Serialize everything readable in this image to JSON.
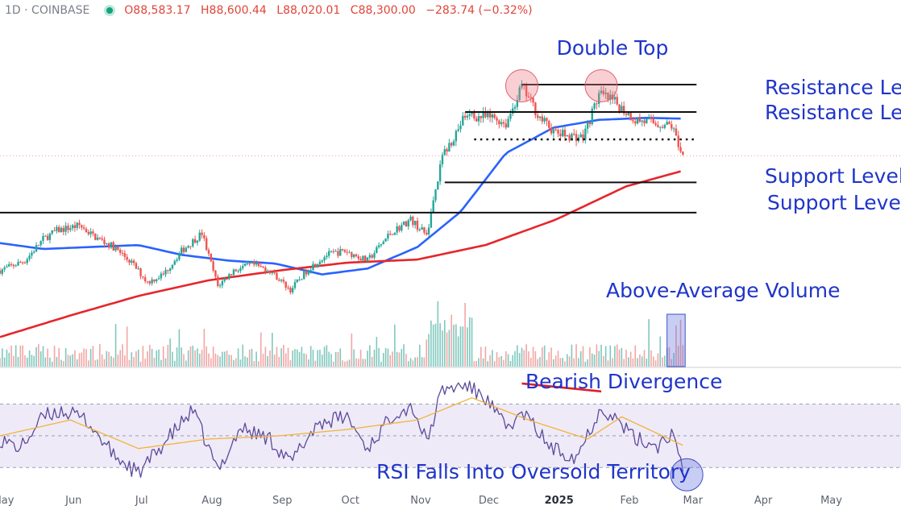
{
  "header": {
    "symbol": "1D · COINBASE",
    "ohlc": [
      {
        "label": "O",
        "value": "88,583.17"
      },
      {
        "label": "H",
        "value": "88,600.44"
      },
      {
        "label": "L",
        "value": "88,020.01"
      },
      {
        "label": "C",
        "value": "88,300.00"
      }
    ],
    "change": "−283.74 (−0.32%)"
  },
  "colors": {
    "up": "#26a69a",
    "down": "#ef5350",
    "ma_blue": "#2962ff",
    "ma_red": "#e6262b",
    "annotation": "#1f35c9",
    "rsi": "#5b4b9a",
    "rsi_ma": "#f0b43c",
    "rsi_band": "#efeaf8"
  },
  "chart_data": [
    {
      "type": "candlestick",
      "x_range": [
        "2024-05-01",
        "2025-05-31"
      ],
      "xaxis_ticks": [
        {
          "date": "2024-05-01",
          "label": "May"
        },
        {
          "date": "2024-06-01",
          "label": "Jun"
        },
        {
          "date": "2024-07-01",
          "label": "Jul"
        },
        {
          "date": "2024-08-01",
          "label": "Aug"
        },
        {
          "date": "2024-09-01",
          "label": "Sep"
        },
        {
          "date": "2024-10-01",
          "label": "Oct"
        },
        {
          "date": "2024-11-01",
          "label": "Nov"
        },
        {
          "date": "2024-12-01",
          "label": "Dec"
        },
        {
          "date": "2025-01-01",
          "label": "2025"
        },
        {
          "date": "2025-02-01",
          "label": "Feb"
        },
        {
          "date": "2025-03-01",
          "label": "Mar"
        },
        {
          "date": "2025-04-01",
          "label": "Apr"
        },
        {
          "date": "2025-05-01",
          "label": "May"
        }
      ],
      "last_close": 88300,
      "price_path": [
        [
          "2024-05-01",
          59000
        ],
        [
          "2024-05-12",
          61500
        ],
        [
          "2024-05-20",
          67000
        ],
        [
          "2024-05-26",
          69200
        ],
        [
          "2024-06-05",
          70500
        ],
        [
          "2024-06-12",
          67500
        ],
        [
          "2024-06-20",
          65000
        ],
        [
          "2024-06-28",
          61000
        ],
        [
          "2024-07-05",
          56000
        ],
        [
          "2024-07-12",
          58000
        ],
        [
          "2024-07-20",
          64000
        ],
        [
          "2024-07-29",
          68500
        ],
        [
          "2024-08-05",
          55000
        ],
        [
          "2024-08-12",
          59000
        ],
        [
          "2024-08-20",
          60500
        ],
        [
          "2024-08-28",
          59000
        ],
        [
          "2024-09-06",
          54000
        ],
        [
          "2024-09-14",
          59500
        ],
        [
          "2024-09-22",
          63000
        ],
        [
          "2024-09-30",
          64000
        ],
        [
          "2024-10-10",
          61500
        ],
        [
          "2024-10-20",
          68500
        ],
        [
          "2024-10-29",
          72000
        ],
        [
          "2024-11-05",
          68000
        ],
        [
          "2024-11-12",
          88000
        ],
        [
          "2024-11-22",
          98500
        ],
        [
          "2024-12-05",
          98000
        ],
        [
          "2024-12-10",
          96500
        ],
        [
          "2024-12-17",
          106000
        ],
        [
          "2024-12-25",
          98000
        ],
        [
          "2025-01-01",
          94000
        ],
        [
          "2025-01-13",
          93000
        ],
        [
          "2025-01-20",
          104000
        ],
        [
          "2025-01-27",
          102000
        ],
        [
          "2025-02-05",
          97500
        ],
        [
          "2025-02-15",
          96500
        ],
        [
          "2025-02-21",
          96000
        ],
        [
          "2025-02-26",
          88300
        ]
      ],
      "moving_averages": [
        {
          "period": 50,
          "color": "#2962ff",
          "path": [
            [
              "2024-05-01",
              66000
            ],
            [
              "2024-05-20",
              64500
            ],
            [
              "2024-06-10",
              65000
            ],
            [
              "2024-07-01",
              65500
            ],
            [
              "2024-07-20",
              63000
            ],
            [
              "2024-08-10",
              61500
            ],
            [
              "2024-08-30",
              60800
            ],
            [
              "2024-09-20",
              58000
            ],
            [
              "2024-10-10",
              59500
            ],
            [
              "2024-11-01",
              65000
            ],
            [
              "2024-11-20",
              74000
            ],
            [
              "2024-12-10",
              89000
            ],
            [
              "2024-12-31",
              95500
            ],
            [
              "2025-01-20",
              97500
            ],
            [
              "2025-02-10",
              98000
            ],
            [
              "2025-02-26",
              97800
            ]
          ]
        },
        {
          "period": 200,
          "color": "#e6262b",
          "path": [
            [
              "2024-05-01",
              42000
            ],
            [
              "2024-06-01",
              47500
            ],
            [
              "2024-07-01",
              52500
            ],
            [
              "2024-08-01",
              56500
            ],
            [
              "2024-09-01",
              59000
            ],
            [
              "2024-10-01",
              61000
            ],
            [
              "2024-11-01",
              61800
            ],
            [
              "2024-12-01",
              65500
            ],
            [
              "2025-01-01",
              72000
            ],
            [
              "2025-02-01",
              80500
            ],
            [
              "2025-02-26",
              84500
            ]
          ]
        }
      ],
      "levels": [
        {
          "name": "resistance-upper",
          "price": 106500,
          "from": "2024-12-17",
          "to": "2025-03-04",
          "style": "solid"
        },
        {
          "name": "resistance-lower",
          "price": 99500,
          "from": "2024-11-22",
          "to": "2025-03-04",
          "style": "solid"
        },
        {
          "name": "neckline",
          "price": 92500,
          "from": "2024-11-26",
          "to": "2025-03-04",
          "style": "dotted"
        },
        {
          "name": "support-upper",
          "price": 81500,
          "from": "2024-11-13",
          "to": "2025-03-04",
          "style": "solid"
        },
        {
          "name": "support-lower",
          "price": 73800,
          "from": "2024-05-01",
          "to": "2025-03-04",
          "style": "solid"
        }
      ],
      "double_top_peaks": [
        {
          "date": "2024-12-17",
          "price": 106200
        },
        {
          "date": "2025-01-21",
          "price": 106200
        }
      ],
      "annotations": [
        {
          "name": "double-top-label",
          "text": "Double Top"
        },
        {
          "name": "resistance-label-1",
          "text": "Resistance Le"
        },
        {
          "name": "resistance-label-2",
          "text": "Resistance Le"
        },
        {
          "name": "support-label-1",
          "text": "Support Level"
        },
        {
          "name": "support-label-2",
          "text": "Support Leve"
        },
        {
          "name": "volume-label",
          "text": "Above-Average Volume"
        },
        {
          "name": "divergence-label",
          "text": "Bearish Divergence"
        },
        {
          "name": "rsi-label",
          "text": "RSI Falls Into Oversold Territory"
        }
      ],
      "volume_highlight": {
        "from": "2025-02-19",
        "to": "2025-02-27"
      }
    },
    {
      "type": "line",
      "indicator": "RSI",
      "ylim": [
        20,
        85
      ],
      "bands": [
        30,
        50,
        70
      ],
      "rsi_path": [
        [
          "2024-05-01",
          48
        ],
        [
          "2024-05-10",
          42
        ],
        [
          "2024-05-20",
          62
        ],
        [
          "2024-05-28",
          66
        ],
        [
          "2024-06-08",
          60
        ],
        [
          "2024-06-20",
          38
        ],
        [
          "2024-07-01",
          26
        ],
        [
          "2024-07-12",
          45
        ],
        [
          "2024-07-25",
          66
        ],
        [
          "2024-08-05",
          28
        ],
        [
          "2024-08-15",
          55
        ],
        [
          "2024-08-28",
          48
        ],
        [
          "2024-09-06",
          33
        ],
        [
          "2024-09-18",
          58
        ],
        [
          "2024-10-01",
          62
        ],
        [
          "2024-10-10",
          42
        ],
        [
          "2024-10-22",
          65
        ],
        [
          "2024-10-30",
          68
        ],
        [
          "2024-11-05",
          46
        ],
        [
          "2024-11-12",
          79
        ],
        [
          "2024-11-22",
          82
        ],
        [
          "2024-12-01",
          74
        ],
        [
          "2024-12-10",
          55
        ],
        [
          "2024-12-18",
          64
        ],
        [
          "2024-12-30",
          42
        ],
        [
          "2025-01-10",
          37
        ],
        [
          "2025-01-21",
          68
        ],
        [
          "2025-01-28",
          60
        ],
        [
          "2025-02-05",
          48
        ],
        [
          "2025-02-15",
          44
        ],
        [
          "2025-02-21",
          52
        ],
        [
          "2025-02-26",
          27
        ]
      ],
      "rsi_ma_path": [
        [
          "2024-05-01",
          50
        ],
        [
          "2024-06-01",
          60
        ],
        [
          "2024-07-01",
          42
        ],
        [
          "2024-08-01",
          48
        ],
        [
          "2024-09-01",
          50
        ],
        [
          "2024-10-01",
          54
        ],
        [
          "2024-11-01",
          60
        ],
        [
          "2024-11-25",
          74
        ],
        [
          "2024-12-20",
          60
        ],
        [
          "2025-01-15",
          48
        ],
        [
          "2025-01-30",
          62
        ],
        [
          "2025-02-26",
          44
        ]
      ],
      "divergence_line": [
        [
          "2024-12-17",
          83
        ],
        [
          "2025-01-21",
          78
        ]
      ],
      "oversold_marker": {
        "date": "2025-02-27",
        "value": 27
      }
    }
  ]
}
